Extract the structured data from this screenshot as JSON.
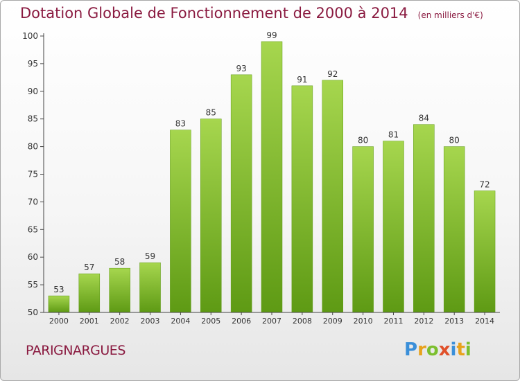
{
  "chart_data": {
    "type": "bar",
    "title": "Dotation Globale de Fonctionnement de 2000 à 2014",
    "subtitle": "(en milliers d'€)",
    "categories": [
      "2000",
      "2001",
      "2002",
      "2003",
      "2004",
      "2005",
      "2006",
      "2007",
      "2008",
      "2009",
      "2010",
      "2011",
      "2012",
      "2013",
      "2014"
    ],
    "values": [
      53,
      57,
      58,
      59,
      83,
      85,
      93,
      99,
      91,
      92,
      80,
      81,
      84,
      80,
      72
    ],
    "ylim": [
      50,
      100
    ],
    "yticks": [
      50,
      55,
      60,
      65,
      70,
      75,
      80,
      85,
      90,
      95,
      100
    ],
    "grid": false,
    "bar_color": "#7cb82f",
    "bar_color_light": "#a6d64e",
    "bar_color_dark": "#5e9a14"
  },
  "commune": "PARIGNARGUES",
  "brand": {
    "letters": [
      "P",
      "r",
      "o",
      "x",
      "i",
      "t",
      "i"
    ],
    "colors": [
      "#3a8fd9",
      "#e8a21c",
      "#7cbf2e",
      "#e0502a",
      "#3a8fd9",
      "#e8a21c",
      "#7cbf2e"
    ]
  },
  "colors": {
    "title": "#8a1a40",
    "axis": "#444444",
    "label": "#333333"
  }
}
